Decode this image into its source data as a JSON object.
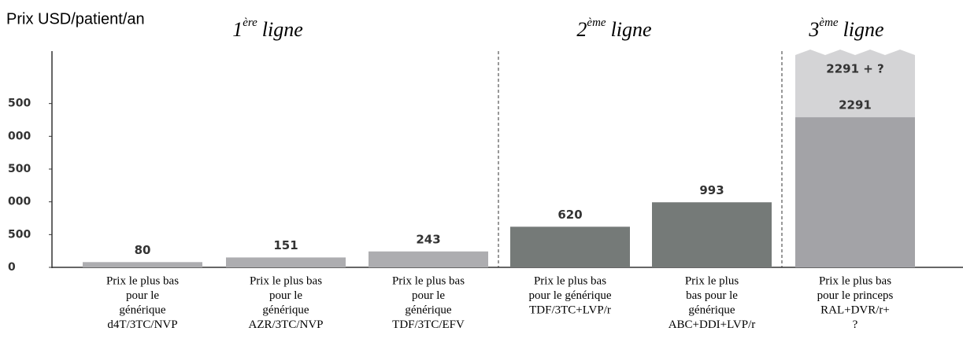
{
  "chart_data": {
    "type": "bar",
    "ylabel": "Prix USD/patient/an",
    "groups": [
      {
        "num": "1",
        "sup": "ère",
        "word": "ligne"
      },
      {
        "num": "2",
        "sup": "ème",
        "word": "ligne"
      },
      {
        "num": "3",
        "sup": "ème",
        "word": "ligne"
      }
    ],
    "categories": [
      [
        "Prix le plus bas",
        "pour le",
        "générique",
        "d4T/3TC/NVP"
      ],
      [
        "Prix le plus bas",
        "pour le",
        "générique",
        "AZR/3TC/NVP"
      ],
      [
        "Prix le plus bas",
        "pour le",
        "générique",
        "TDF/3TC/EFV"
      ],
      [
        "Prix le plus bas",
        "pour le générique",
        "TDF/3TC+LVP/r"
      ],
      [
        "Prix le plus",
        "bas pour le",
        "générique",
        "ABC+DDI+LVP/r"
      ],
      [
        "Prix le plus bas",
        "pour le princeps",
        "RAL+DVR/r+",
        "?"
      ]
    ],
    "values": [
      80,
      151,
      243,
      620,
      993,
      2291
    ],
    "colors": [
      "#adadb0",
      "#adadb0",
      "#adadb0",
      "#757a78",
      "#757a78",
      "#a3a3a7"
    ],
    "annotation": "2291 + ?",
    "ylim": [
      0,
      3300
    ],
    "yticks": [
      0,
      500,
      {
        "value": 1000,
        "label": "000"
      },
      {
        "value": 1500,
        "label": "500"
      },
      {
        "value": 2000,
        "label": "000"
      },
      {
        "value": 2500,
        "label": "500"
      }
    ]
  }
}
